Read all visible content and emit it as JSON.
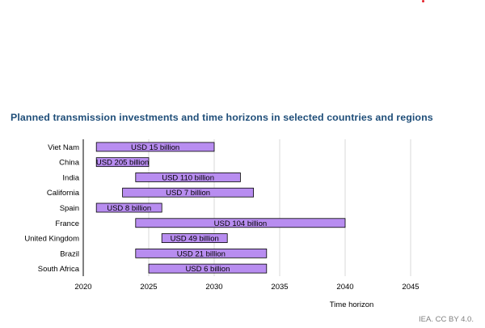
{
  "chart_data": {
    "type": "bar",
    "orientation": "horizontal-range",
    "title": "Planned transmission investments and time horizons in selected countries and regions",
    "xlabel": "Time horizon",
    "xlim": [
      2020,
      2045
    ],
    "xticks": [
      2020,
      2025,
      2030,
      2035,
      2040,
      2045
    ],
    "grid": true,
    "bar_color": "#b88df0",
    "categories": [
      "Viet Nam",
      "China",
      "India",
      "California",
      "Spain",
      "France",
      "United Kingdom",
      "Brazil",
      "South Africa"
    ],
    "start": [
      2021,
      2021,
      2024,
      2023,
      2021,
      2024,
      2026,
      2024,
      2025
    ],
    "end": [
      2030,
      2025,
      2032,
      2033,
      2026,
      2040,
      2031,
      2034,
      2034
    ],
    "labels": [
      "USD 15 billion",
      "USD 205 billion",
      "USD 110 billion",
      "USD 7 billion",
      "USD 8 billion",
      "USD 104 billion",
      "USD 49 billion",
      "USD 21 billion",
      "USD 6 billion"
    ]
  },
  "credit": "IEA. CC BY 4.0."
}
